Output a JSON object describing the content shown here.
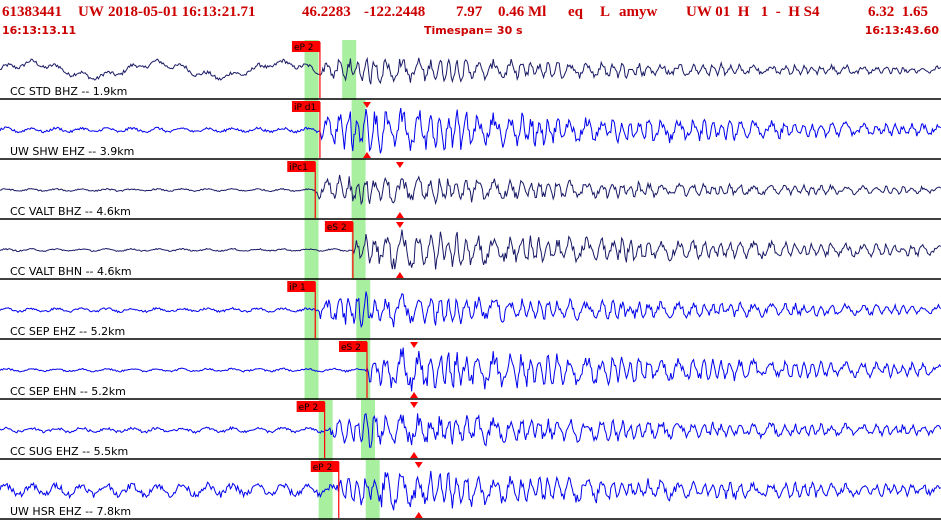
{
  "header": {
    "event_id": "61383441",
    "network": "UW",
    "datetime": "2018-05-01 16:13:21.71",
    "lat": "46.2283",
    "lon": "-122.2448",
    "depth": "7.97",
    "magnitude": "0.46 Ml",
    "event_type": "eq",
    "local": "L",
    "analyst": "amyw",
    "quality": "UW 01  H   1  -  H S4",
    "extra": "6.32  1.65",
    "start_time": "16:13:13.11",
    "timespan": "Timespan=  30 s",
    "end_time": "16:13:43.60"
  },
  "colors": {
    "header_red": "#cc0000",
    "trace_dark": "#1a1a66",
    "trace_blue": "#0000ee",
    "pick_red": "#ff0000",
    "window_green": "#a8f0a0"
  },
  "traces": [
    {
      "label": "CC STD BHZ -- 1.9km",
      "color": "dark",
      "amp": 0.55,
      "noise": 0.18,
      "onset": 0.34,
      "picks": [
        {
          "text": "eP 2",
          "pos": 0.34
        }
      ],
      "green": [
        0.33,
        0.37
      ],
      "tri": []
    },
    {
      "label": "UW SHW EHZ -- 3.9km",
      "color": "blue",
      "amp": 0.95,
      "noise": 0.12,
      "onset": 0.34,
      "picks": [
        {
          "text": "iP d1",
          "pos": 0.34
        }
      ],
      "green": [
        0.33,
        0.38
      ],
      "tri": [
        0.39
      ]
    },
    {
      "label": "CC VALT BHZ -- 4.6km",
      "color": "dark",
      "amp": 0.6,
      "noise": 0.06,
      "onset": 0.335,
      "picks": [
        {
          "text": "iPc1",
          "pos": 0.335
        }
      ],
      "green": [
        0.33,
        0.38
      ],
      "tri": [
        0.425
      ]
    },
    {
      "label": "CC VALT BHN -- 4.6km",
      "color": "dark",
      "amp": 0.8,
      "noise": 0.06,
      "onset": 0.375,
      "picks": [
        {
          "text": "eS 2",
          "pos": 0.375
        }
      ],
      "green": [
        0.33,
        0.38
      ],
      "tri": [
        0.425
      ]
    },
    {
      "label": "CC SEP EHZ -- 5.2km",
      "color": "blue",
      "amp": 0.7,
      "noise": 0.1,
      "onset": 0.34,
      "picks": [
        {
          "text": "iP 1",
          "pos": 0.335
        }
      ],
      "green": [
        0.33,
        0.385
      ],
      "tri": []
    },
    {
      "label": "CC SEP EHN -- 5.2km",
      "color": "blue",
      "amp": 0.9,
      "noise": 0.08,
      "onset": 0.39,
      "picks": [
        {
          "text": "eS 2",
          "pos": 0.39
        }
      ],
      "green": [
        0.33,
        0.385
      ],
      "tri": [
        0.44
      ]
    },
    {
      "label": "CC SUG EHZ -- 5.5km",
      "color": "blue",
      "amp": 0.75,
      "noise": 0.12,
      "onset": 0.35,
      "picks": [
        {
          "text": "eP 2",
          "pos": 0.345
        }
      ],
      "green": [
        0.345,
        0.39
      ],
      "tri": [
        0.44
      ]
    },
    {
      "label": "UW HSR EHZ -- 7.8km",
      "color": "blue",
      "amp": 0.8,
      "noise": 0.3,
      "onset": 0.36,
      "picks": [
        {
          "text": "eP 2",
          "pos": 0.36
        }
      ],
      "green": [
        0.345,
        0.395
      ],
      "tri": [
        0.445
      ]
    }
  ]
}
